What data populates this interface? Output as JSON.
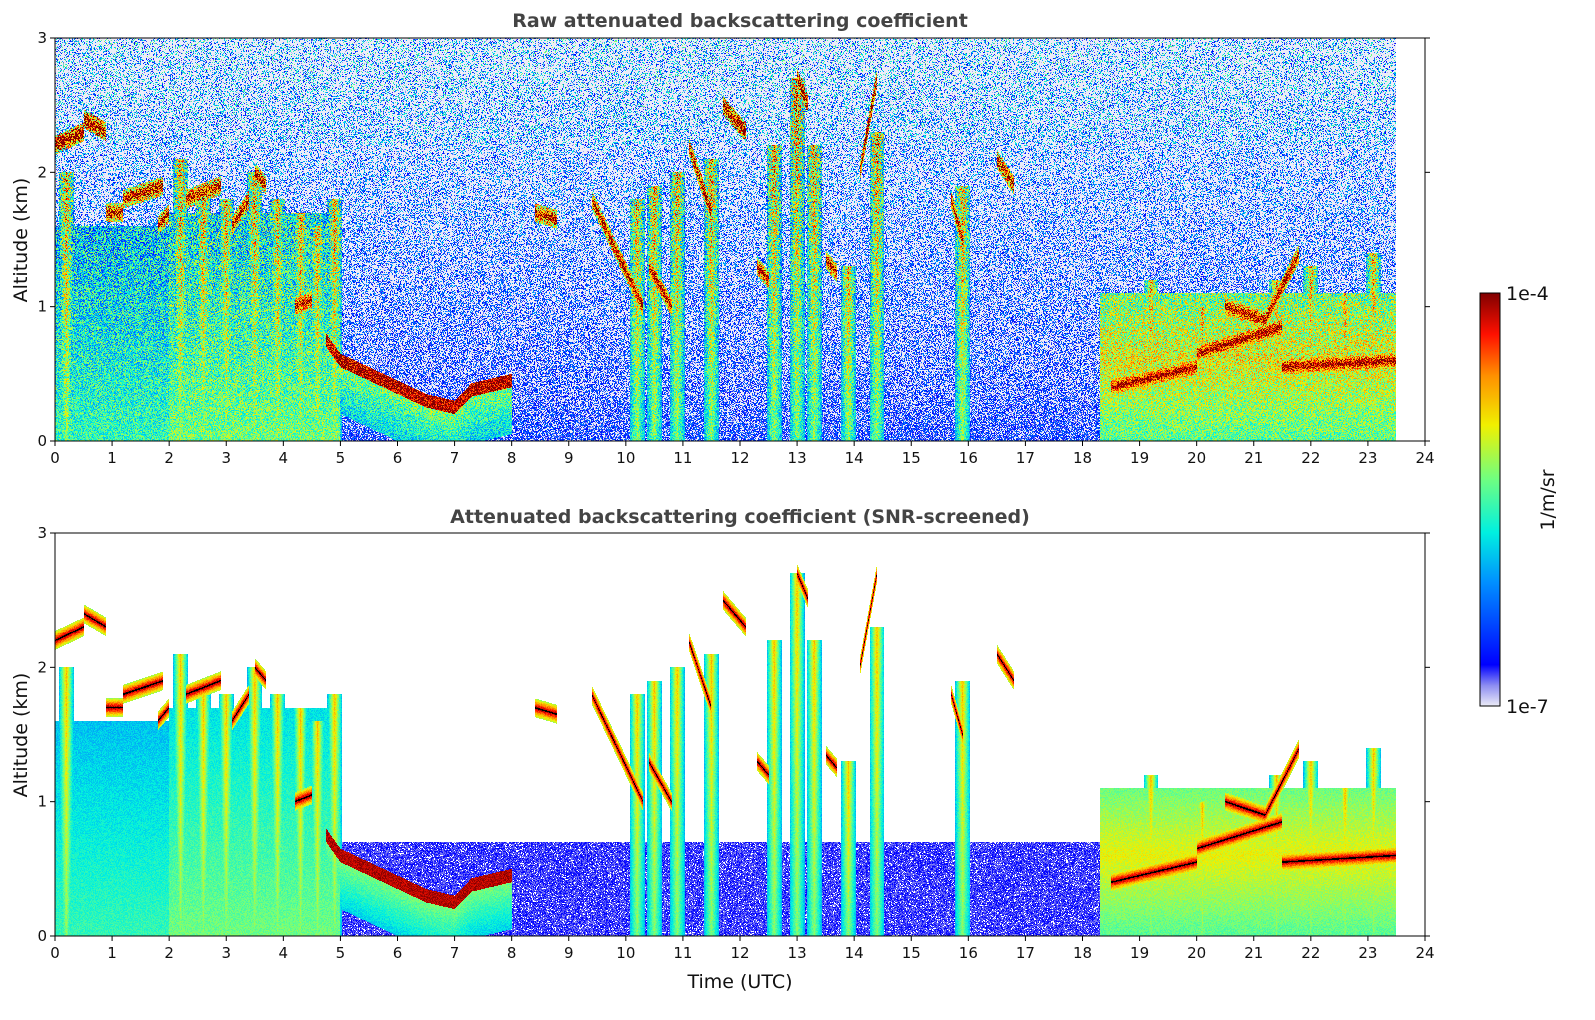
{
  "chart_data": [
    {
      "type": "heatmap",
      "title": "Raw attenuated backscattering coefficient",
      "xlabel": "",
      "ylabel": "Altitude (km)",
      "xlim": [
        0,
        24
      ],
      "ylim": [
        0,
        3
      ],
      "xticks": [
        "0",
        "1",
        "2",
        "3",
        "4",
        "5",
        "6",
        "7",
        "8",
        "9",
        "10",
        "11",
        "12",
        "13",
        "14",
        "15",
        "16",
        "17",
        "18",
        "19",
        "20",
        "21",
        "22",
        "23",
        "24"
      ],
      "yticks": [
        "0",
        "1",
        "2",
        "3"
      ],
      "screened": false
    },
    {
      "type": "heatmap",
      "title": "Attenuated backscattering coefficient (SNR-screened)",
      "xlabel": "Time (UTC)",
      "ylabel": "Altitude (km)",
      "xlim": [
        0,
        24
      ],
      "ylim": [
        0,
        3
      ],
      "xticks": [
        "0",
        "1",
        "2",
        "3",
        "4",
        "5",
        "6",
        "7",
        "8",
        "9",
        "10",
        "11",
        "12",
        "13",
        "14",
        "15",
        "16",
        "17",
        "18",
        "19",
        "20",
        "21",
        "22",
        "23",
        "24"
      ],
      "yticks": [
        "0",
        "1",
        "2",
        "3"
      ],
      "screened": true
    }
  ],
  "colorbar": {
    "label": "1/m/sr",
    "max_label": "1e-4",
    "min_label": "1e-7",
    "scale": "log",
    "range": [
      1e-07,
      0.0001
    ],
    "colormap": "jet"
  },
  "data_end_hour": 23.5,
  "features": {
    "aerosol_layer": [
      {
        "t": 4.75,
        "h": 0.75
      },
      {
        "t": 5.0,
        "h": 0.6
      },
      {
        "t": 5.5,
        "h": 0.5
      },
      {
        "t": 6.0,
        "h": 0.4
      },
      {
        "t": 6.5,
        "h": 0.3
      },
      {
        "t": 7.0,
        "h": 0.25
      },
      {
        "t": 7.3,
        "h": 0.38
      },
      {
        "t": 8.0,
        "h": 0.45
      }
    ],
    "cloud_segments": [
      {
        "t0": 0.0,
        "t1": 0.5,
        "h0": 2.2,
        "h1": 2.3
      },
      {
        "t0": 0.5,
        "t1": 0.9,
        "h0": 2.4,
        "h1": 2.3
      },
      {
        "t0": 0.9,
        "t1": 1.2,
        "h0": 1.7,
        "h1": 1.7
      },
      {
        "t0": 1.2,
        "t1": 1.9,
        "h0": 1.8,
        "h1": 1.9
      },
      {
        "t0": 1.8,
        "t1": 2.0,
        "h0": 1.6,
        "h1": 1.7
      },
      {
        "t0": 2.3,
        "t1": 2.9,
        "h0": 1.8,
        "h1": 1.9
      },
      {
        "t0": 3.1,
        "t1": 3.4,
        "h0": 1.6,
        "h1": 1.8
      },
      {
        "t0": 3.5,
        "t1": 3.7,
        "h0": 2.0,
        "h1": 1.9
      },
      {
        "t0": 4.2,
        "t1": 4.5,
        "h0": 1.0,
        "h1": 1.05
      },
      {
        "t0": 8.4,
        "t1": 8.8,
        "h0": 1.7,
        "h1": 1.65
      },
      {
        "t0": 9.4,
        "t1": 10.3,
        "h0": 1.8,
        "h1": 1.0
      },
      {
        "t0": 10.4,
        "t1": 10.8,
        "h0": 1.3,
        "h1": 1.0
      },
      {
        "t0": 11.1,
        "t1": 11.5,
        "h0": 2.2,
        "h1": 1.7
      },
      {
        "t0": 11.7,
        "t1": 12.1,
        "h0": 2.5,
        "h1": 2.3
      },
      {
        "t0": 12.3,
        "t1": 12.5,
        "h0": 1.3,
        "h1": 1.2
      },
      {
        "t0": 13.0,
        "t1": 13.2,
        "h0": 2.7,
        "h1": 2.5
      },
      {
        "t0": 13.5,
        "t1": 13.7,
        "h0": 1.35,
        "h1": 1.25
      },
      {
        "t0": 14.1,
        "t1": 14.4,
        "h0": 2.0,
        "h1": 2.7
      },
      {
        "t0": 15.7,
        "t1": 15.9,
        "h0": 1.8,
        "h1": 1.5
      },
      {
        "t0": 16.5,
        "t1": 16.8,
        "h0": 2.1,
        "h1": 1.9
      },
      {
        "t0": 18.5,
        "t1": 20.0,
        "h0": 0.4,
        "h1": 0.55
      },
      {
        "t0": 20.0,
        "t1": 21.5,
        "h0": 0.65,
        "h1": 0.85
      },
      {
        "t0": 20.5,
        "t1": 21.2,
        "h0": 1.0,
        "h1": 0.9
      },
      {
        "t0": 21.2,
        "t1": 21.8,
        "h0": 0.9,
        "h1": 1.4
      },
      {
        "t0": 21.5,
        "t1": 23.5,
        "h0": 0.55,
        "h1": 0.6
      }
    ],
    "plumes": [
      {
        "t": 0.2,
        "top": 2.0
      },
      {
        "t": 2.2,
        "top": 2.1
      },
      {
        "t": 2.6,
        "top": 1.9
      },
      {
        "t": 3.0,
        "top": 1.8
      },
      {
        "t": 3.5,
        "top": 2.0
      },
      {
        "t": 3.9,
        "top": 1.8
      },
      {
        "t": 4.3,
        "top": 1.7
      },
      {
        "t": 4.6,
        "top": 1.6
      },
      {
        "t": 4.9,
        "top": 1.8
      },
      {
        "t": 10.2,
        "top": 1.8
      },
      {
        "t": 10.5,
        "top": 1.9
      },
      {
        "t": 10.9,
        "top": 2.0
      },
      {
        "t": 11.5,
        "top": 2.1
      },
      {
        "t": 12.6,
        "top": 2.2
      },
      {
        "t": 13.0,
        "top": 2.7
      },
      {
        "t": 13.3,
        "top": 2.2
      },
      {
        "t": 13.9,
        "top": 1.3
      },
      {
        "t": 14.4,
        "top": 2.3
      },
      {
        "t": 15.9,
        "top": 1.9
      },
      {
        "t": 19.2,
        "top": 1.2
      },
      {
        "t": 20.1,
        "top": 1.0
      },
      {
        "t": 21.4,
        "top": 1.2
      },
      {
        "t": 22.0,
        "top": 1.3
      },
      {
        "t": 22.6,
        "top": 1.1
      },
      {
        "t": 23.1,
        "top": 1.4
      }
    ]
  }
}
